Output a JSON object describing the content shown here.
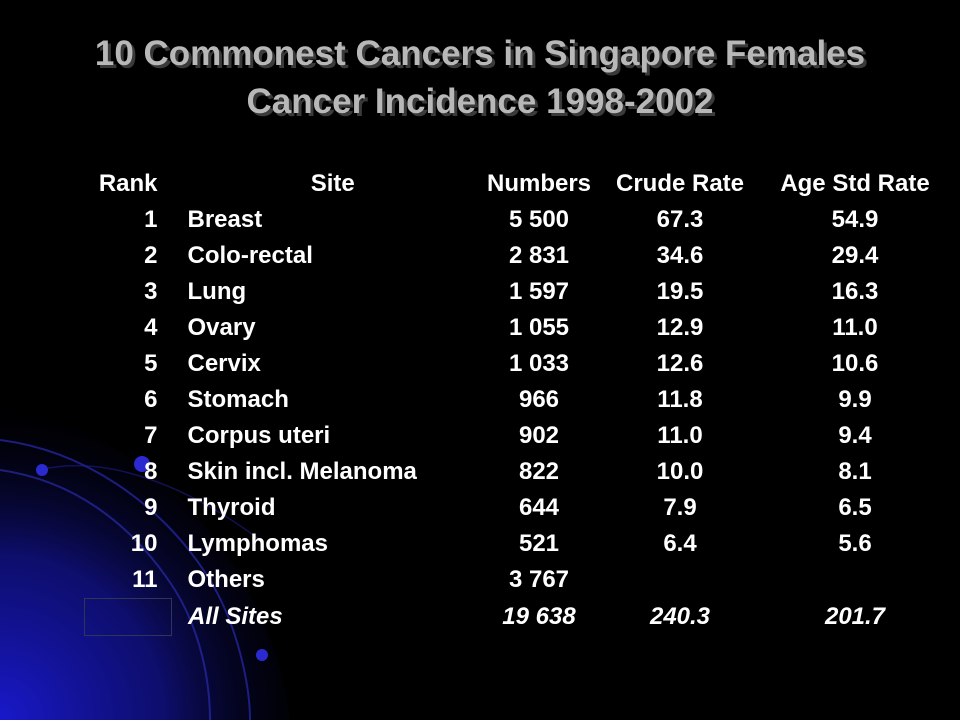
{
  "title": {
    "line1": "10 Commonest Cancers in Singapore Females",
    "line2": "Cancer Incidence 1998-2002"
  },
  "colors": {
    "background": "#000000",
    "title": "#b8b8b8",
    "text": "#ffffff",
    "accent_swirl": "#1a1ac8"
  },
  "table": {
    "headers": {
      "rank": "Rank",
      "site": "Site",
      "numbers": "Numbers",
      "crude_rate": "Crude Rate",
      "age_std_rate": "Age Std Rate"
    },
    "rows": [
      {
        "rank": "1",
        "site": "Breast",
        "numbers": "5 500",
        "crude_rate": "67.3",
        "age_std_rate": "54.9"
      },
      {
        "rank": "2",
        "site": "Colo-rectal",
        "numbers": "2 831",
        "crude_rate": "34.6",
        "age_std_rate": "29.4"
      },
      {
        "rank": "3",
        "site": "Lung",
        "numbers": "1 597",
        "crude_rate": "19.5",
        "age_std_rate": "16.3"
      },
      {
        "rank": "4",
        "site": "Ovary",
        "numbers": "1 055",
        "crude_rate": "12.9",
        "age_std_rate": "11.0"
      },
      {
        "rank": "5",
        "site": "Cervix",
        "numbers": "1 033",
        "crude_rate": "12.6",
        "age_std_rate": "10.6"
      },
      {
        "rank": "6",
        "site": "Stomach",
        "numbers": "966",
        "crude_rate": "11.8",
        "age_std_rate": "9.9"
      },
      {
        "rank": "7",
        "site": "Corpus uteri",
        "numbers": "902",
        "crude_rate": "11.0",
        "age_std_rate": "9.4"
      },
      {
        "rank": "8",
        "site": "Skin incl. Melanoma",
        "numbers": "822",
        "crude_rate": "10.0",
        "age_std_rate": "8.1"
      },
      {
        "rank": "9",
        "site": "Thyroid",
        "numbers": "644",
        "crude_rate": "7.9",
        "age_std_rate": "6.5"
      },
      {
        "rank": "10",
        "site": "Lymphomas",
        "numbers": "521",
        "crude_rate": "6.4",
        "age_std_rate": "5.6"
      },
      {
        "rank": "11",
        "site": "Others",
        "numbers": "3 767",
        "crude_rate": "",
        "age_std_rate": ""
      }
    ],
    "total": {
      "rank": "",
      "site": "All Sites",
      "numbers": "19 638",
      "crude_rate": "240.3",
      "age_std_rate": "201.7"
    }
  }
}
